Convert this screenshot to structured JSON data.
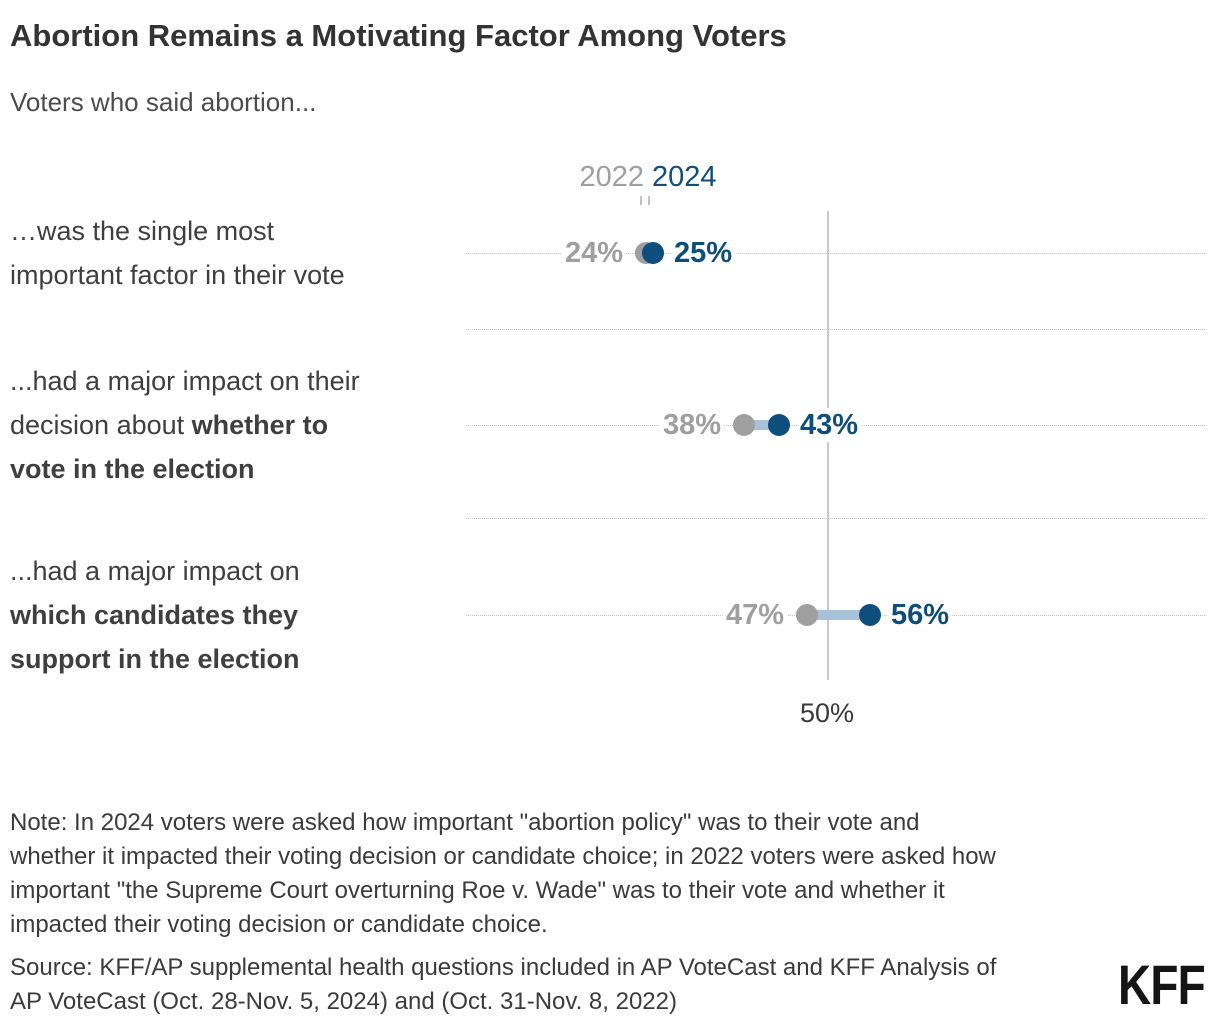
{
  "header": {
    "title": "Abortion Remains a Motivating Factor Among Voters",
    "subtitle": "Voters who said abortion..."
  },
  "legend": {
    "label_2022": "2022",
    "label_2024": "2024"
  },
  "colors": {
    "series_2022": "#9f9f9f",
    "series_2024": "#0e4e7d",
    "connector": "#a6c1d8",
    "grid": "#c6c6c6"
  },
  "chart_data": {
    "type": "dumbbell",
    "series": [
      "2022",
      "2024"
    ],
    "reference_line": {
      "value": 50,
      "label": "50%"
    },
    "legend_position": "top",
    "grid": "dotted-horizontal",
    "rows": [
      {
        "category": "…was the single most important factor in their vote",
        "category_lines": [
          [
            {
              "text": "…was the single most",
              "bold": false
            }
          ],
          [
            {
              "text": "important factor in their vote",
              "bold": false
            }
          ]
        ],
        "value_2022": 24,
        "value_2024": 25,
        "label_2022": "24%",
        "label_2024": "25%"
      },
      {
        "category": "...had a major impact on their decision about whether to vote in the election",
        "category_lines": [
          [
            {
              "text": "...had a major impact on their",
              "bold": false
            }
          ],
          [
            {
              "text": "decision about ",
              "bold": false
            },
            {
              "text": "whether to",
              "bold": true
            }
          ],
          [
            {
              "text": "vote in the election",
              "bold": true
            }
          ]
        ],
        "value_2022": 38,
        "value_2024": 43,
        "label_2022": "38%",
        "label_2024": "43%"
      },
      {
        "category": "...had a major impact on which candidates they support in the election",
        "category_lines": [
          [
            {
              "text": "...had a major impact on",
              "bold": false
            }
          ],
          [
            {
              "text": "which candidates they",
              "bold": true
            }
          ],
          [
            {
              "text": "support in the election",
              "bold": true
            }
          ]
        ],
        "value_2022": 47,
        "value_2024": 56,
        "label_2022": "47%",
        "label_2024": "56%"
      }
    ]
  },
  "footer": {
    "note_lines": [
      "Note: In 2024 voters were asked how important \"abortion policy\" was to their vote and",
      "whether it impacted their voting decision or candidate choice; in 2022 voters were asked how",
      "important \"the Supreme Court overturning Roe v. Wade\" was to their vote and whether it",
      "impacted their voting decision or candidate choice."
    ],
    "source_lines": [
      "Source: KFF/AP supplemental health questions included in AP VoteCast and KFF Analysis of",
      "AP VoteCast (Oct. 28-Nov. 5, 2024) and (Oct. 31-Nov. 8, 2022)"
    ],
    "logo": "KFF"
  }
}
